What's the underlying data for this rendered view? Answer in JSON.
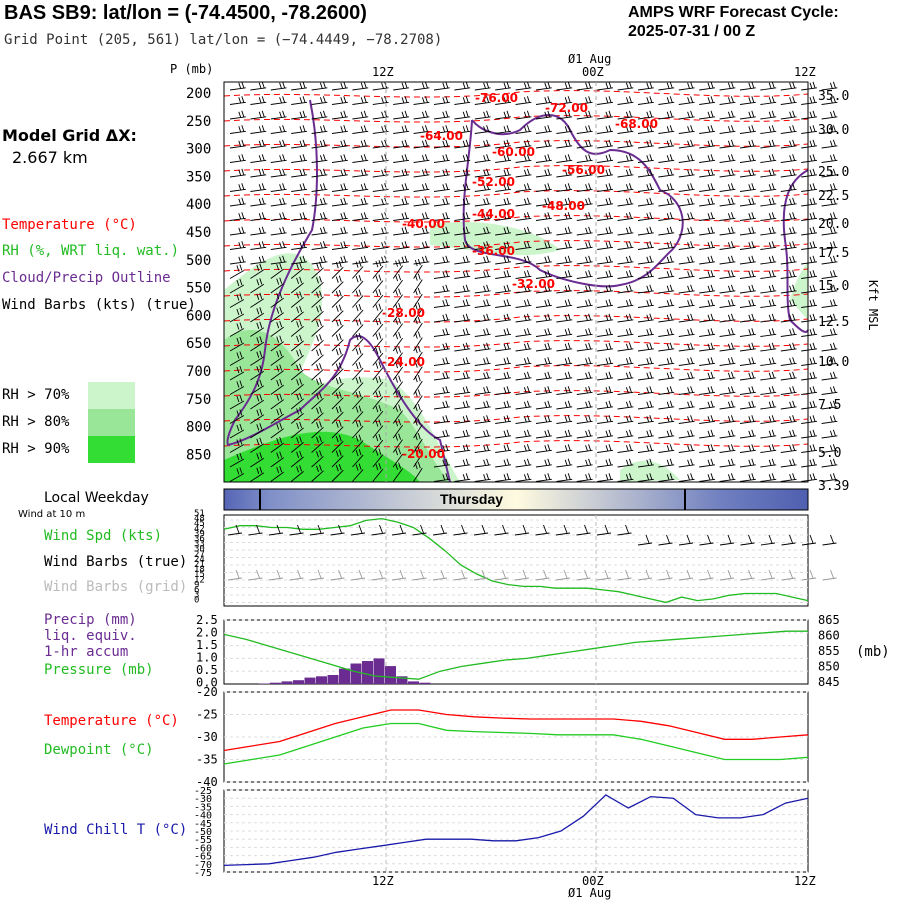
{
  "header": {
    "title": "BAS SB9:  lat/lon = (-74.4500, -78.2600)",
    "subtitle": "Grid Point (205, 561) lat/lon = (−74.4449, −78.2708)",
    "forecast_line1": "AMPS WRF Forecast Cycle:",
    "forecast_line2": "2025-07-31 / 00  Z"
  },
  "legend": {
    "model_grid": "Model Grid ΔX:",
    "model_grid_value": "2.667 km",
    "temperature": "Temperature (°C)",
    "rh": "RH (%, WRT liq. wat.)",
    "cloud": "Cloud/Precip Outline",
    "wind": "Wind Barbs (kts) (true)",
    "rh70": "RH > 70%",
    "rh80": "RH > 80%",
    "rh90": "RH > 90%"
  },
  "colors": {
    "temp": "#ff0000",
    "rh70": "#ccf5cc",
    "rh80": "#99e699",
    "rh90": "#33dd33",
    "cloud": "#6a2c91",
    "wind_spd": "#22bb22",
    "precip": "#6a2c91",
    "windchill": "#1a1aaa",
    "dewpoint": "#22cc22"
  },
  "time_axis": {
    "top_label": "Ø1 Aug",
    "bottom_label": "Ø1 Aug",
    "ticks": [
      "12Z",
      "00Z",
      "12Z"
    ]
  },
  "weekday": {
    "header": "Local Weekday",
    "day": "Thursday"
  },
  "panel_labels": {
    "wind10": "Wind at 10 m",
    "wind_spd": "Wind Spd (kts)",
    "barbs_true": "Wind Barbs (true)",
    "barbs_grid": "Wind Barbs (grid)",
    "precip1": "Precip (mm)",
    "precip2": "liq. equiv.",
    "precip3": "1-hr accum",
    "pressure": "Pressure (mb)",
    "pressure_unit": "(mb)",
    "temperature": "Temperature (°C)",
    "dewpoint": "Dewpoint (°C)",
    "windchill": "Wind Chill T (°C)"
  },
  "chart_data": [
    {
      "type": "heatmap",
      "name": "cross-section",
      "ylabel": "P (mb)",
      "pressure_ticks": [
        "200",
        "250",
        "300",
        "350",
        "400",
        "450",
        "500",
        "550",
        "600",
        "650",
        "700",
        "750",
        "800",
        "850"
      ],
      "right_axis_label": "Kft MSL",
      "height_ticks": [
        "35.0",
        "30.0",
        "25.0",
        "22.5",
        "20.0",
        "17.5",
        "15.0",
        "12.5",
        "10.0",
        "7.5",
        "5.0",
        "3.39"
      ],
      "temp_labels": [
        "-76.00",
        "-72.00",
        "-68.00",
        "-64.00",
        "-60.00",
        "-56.00",
        "-52.00",
        "-48.00",
        "-44.00",
        "-40.00",
        "-36.00",
        "-32.00",
        "-28.00",
        "-24.00",
        "-20.00"
      ]
    },
    {
      "type": "line",
      "name": "wind speed",
      "y_ticks": [
        "51",
        "48",
        "45",
        "42",
        "39",
        "36",
        "33",
        "30",
        "27",
        "24",
        "21",
        "18",
        "15",
        "12",
        "9",
        "6",
        "3",
        "0"
      ],
      "values": [
        43,
        45,
        45,
        44,
        44,
        43,
        43,
        44,
        45,
        48,
        49,
        47,
        44,
        38,
        31,
        23,
        18,
        14,
        12,
        11,
        11,
        10,
        10,
        10,
        9,
        8,
        6,
        4,
        2,
        5,
        3,
        4,
        6,
        7,
        7,
        7,
        5,
        3
      ]
    },
    {
      "type": "bar",
      "name": "precip",
      "y_ticks": [
        "2.5",
        "2.0",
        "1.5",
        "1.0",
        "0.5",
        "0.0"
      ],
      "values": [
        0,
        0,
        0,
        0.02,
        0.05,
        0.1,
        0.15,
        0.25,
        0.3,
        0.35,
        0.6,
        0.8,
        0.9,
        1.0,
        0.7,
        0.3,
        0.1,
        0.05
      ]
    },
    {
      "type": "line",
      "name": "pressure",
      "right_ticks": [
        "865",
        "860",
        "855",
        "850",
        "845"
      ],
      "values": [
        860.5,
        859,
        857,
        855,
        853,
        851,
        849,
        847.5,
        847,
        846.5,
        849,
        850.5,
        851.5,
        852.5,
        853,
        854,
        855,
        856,
        857,
        858,
        858.5,
        859,
        859.5,
        860,
        860.5,
        861,
        861.5,
        861.5
      ]
    },
    {
      "type": "line",
      "name": "temperature/dewpoint",
      "y_ticks": [
        "-20",
        "-25",
        "-30",
        "-35",
        "-40"
      ],
      "series": [
        {
          "values": [
            -33,
            -32,
            -31,
            -29,
            -27,
            -25.5,
            -24,
            -24,
            -25,
            -25.5,
            -25.8,
            -26,
            -26,
            -26,
            -26,
            -26.5,
            -27.5,
            -29,
            -30.5,
            -30.5,
            -30,
            -29.5
          ]
        },
        {
          "values": [
            -36,
            -35,
            -34,
            -32,
            -30,
            -28,
            -27,
            -27,
            -28.5,
            -28.8,
            -29,
            -29.2,
            -29.5,
            -29.5,
            -29.5,
            -30.5,
            -32,
            -33.5,
            -35,
            -35,
            -35,
            -34.5
          ]
        }
      ]
    },
    {
      "type": "line",
      "name": "wind chill",
      "y_ticks": [
        "-25",
        "-30",
        "-35",
        "-40",
        "-45",
        "-50",
        "-55",
        "-60",
        "-65",
        "-70",
        "-75"
      ],
      "values": [
        -71,
        -70.5,
        -70,
        -68,
        -66,
        -63,
        -61,
        -59,
        -57,
        -55,
        -55,
        -55,
        -56,
        -56,
        -54,
        -50,
        -41,
        -28,
        -36,
        -29,
        -30,
        -40,
        -42,
        -42,
        -40,
        -33,
        -30
      ]
    }
  ]
}
